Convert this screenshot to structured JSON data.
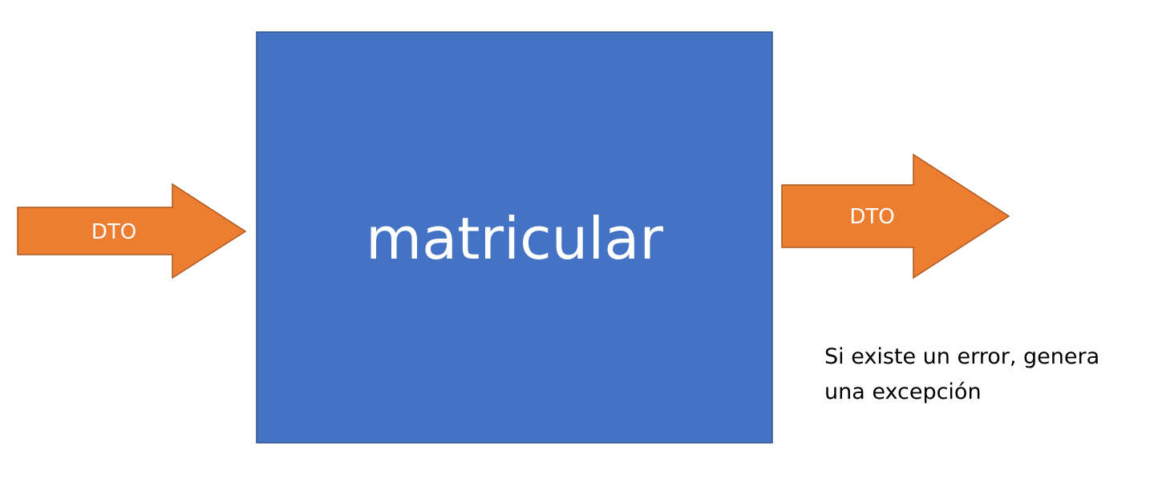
{
  "box": {
    "label": "matricular",
    "fill": "#4472C4",
    "stroke": "#2F528F"
  },
  "input_arrow": {
    "label": "DTO",
    "fill": "#ED7D31",
    "stroke": "#AE5A21"
  },
  "output_arrow": {
    "label": "DTO",
    "fill": "#ED7D31",
    "stroke": "#AE5A21"
  },
  "note": {
    "line1": "Si existe un error, genera",
    "line2": "una excepción"
  }
}
